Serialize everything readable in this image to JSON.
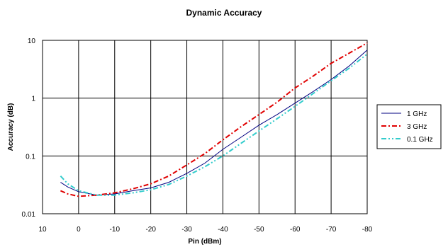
{
  "chart_data": {
    "type": "line",
    "title": "Dynamic Accuracy",
    "xlabel": "Pin (dBm)",
    "ylabel": "Accuracy (dB)",
    "x_ticks": [
      "10",
      "0",
      "-10",
      "-20",
      "-30",
      "-40",
      "-50",
      "-60",
      "-70",
      "-80"
    ],
    "y_ticks": [
      "10",
      "1",
      "0.1",
      "0.01"
    ],
    "xlim": [
      10,
      -80
    ],
    "ylim": [
      0.01,
      10
    ],
    "y_scale": "log",
    "grid": true,
    "legend_position": "right",
    "series": [
      {
        "name": "1 GHz",
        "color": "#000080",
        "dash": "solid",
        "x": [
          5,
          3,
          0,
          -5,
          -10,
          -15,
          -20,
          -25,
          -30,
          -35,
          -40,
          -45,
          -50,
          -55,
          -60,
          -65,
          -70,
          -75,
          -80
        ],
        "y": [
          0.035,
          0.029,
          0.024,
          0.021,
          0.022,
          0.025,
          0.028,
          0.035,
          0.05,
          0.075,
          0.13,
          0.21,
          0.34,
          0.52,
          0.82,
          1.3,
          2.1,
          3.6,
          6.8
        ]
      },
      {
        "name": "3 GHz",
        "color": "#e00000",
        "dash": "dash-dot",
        "x": [
          5,
          3,
          0,
          -5,
          -10,
          -15,
          -20,
          -25,
          -30,
          -35,
          -40,
          -45,
          -50,
          -55,
          -60,
          -65,
          -70,
          -75,
          -80
        ],
        "y": [
          0.025,
          0.022,
          0.02,
          0.021,
          0.023,
          0.027,
          0.033,
          0.045,
          0.07,
          0.11,
          0.19,
          0.32,
          0.52,
          0.85,
          1.5,
          2.4,
          4.0,
          6.0,
          9.0
        ]
      },
      {
        "name": "0.1 GHz",
        "color": "#33cccc",
        "dash": "dash-dot-dot",
        "x": [
          5,
          3,
          0,
          -5,
          -10,
          -15,
          -20,
          -25,
          -30,
          -35,
          -40,
          -45,
          -50,
          -55,
          -60,
          -65,
          -70,
          -75,
          -80
        ],
        "y": [
          0.045,
          0.033,
          0.025,
          0.021,
          0.021,
          0.023,
          0.026,
          0.032,
          0.045,
          0.065,
          0.1,
          0.165,
          0.27,
          0.44,
          0.72,
          1.2,
          2.0,
          3.3,
          5.8
        ]
      }
    ]
  }
}
